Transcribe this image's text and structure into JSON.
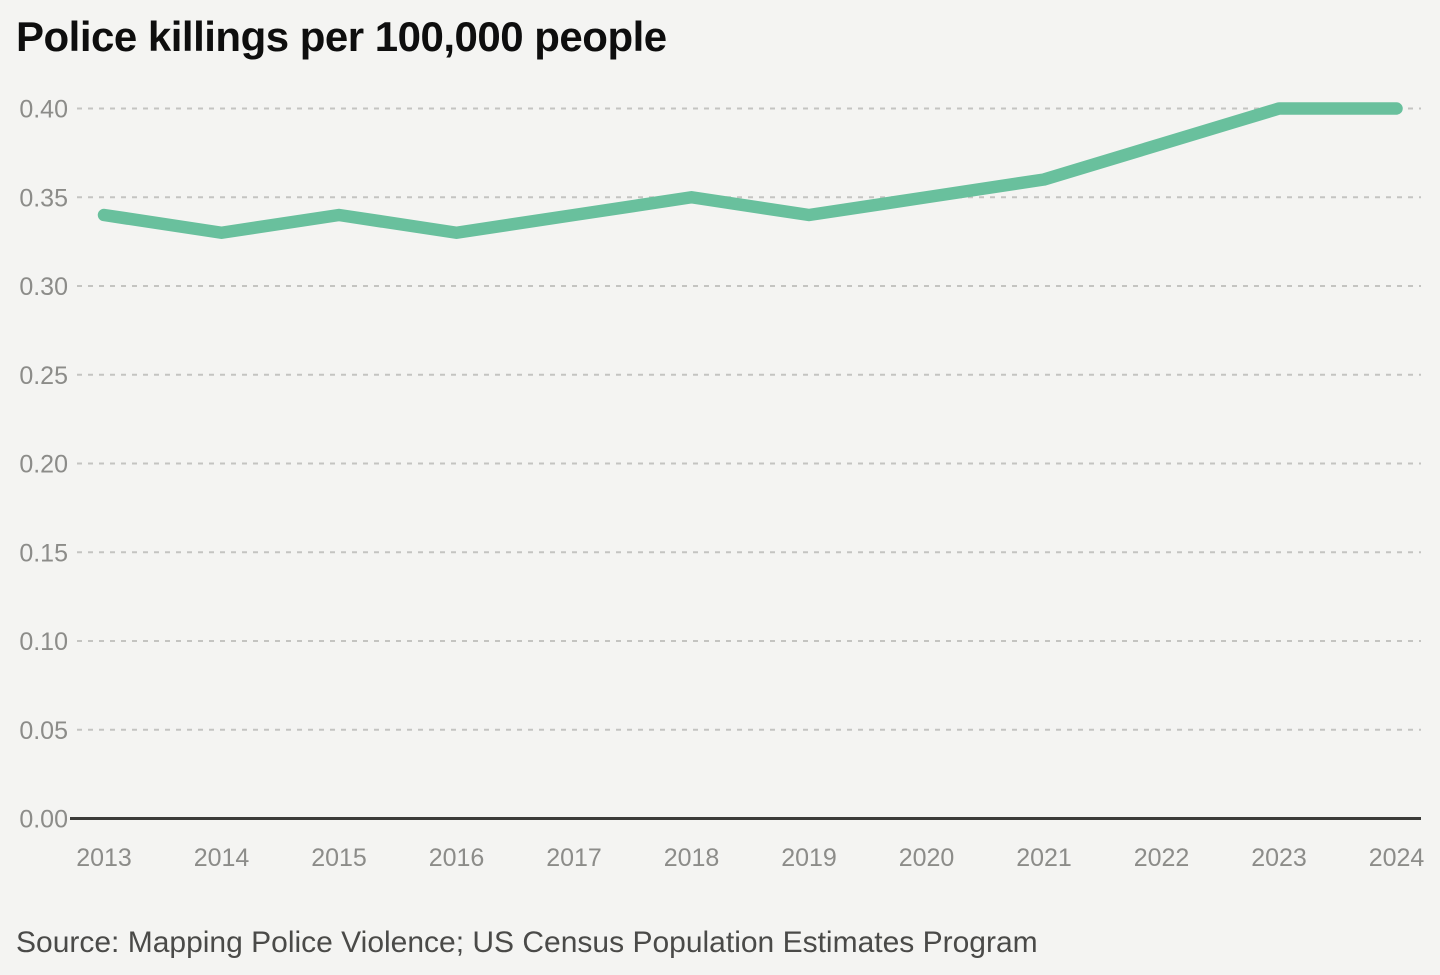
{
  "page": {
    "background_color": "#f4f4f2"
  },
  "header": {
    "title": "Police killings per 100,000 people"
  },
  "footer": {
    "source": "Source: Mapping Police Violence; US Census Population Estimates Program"
  },
  "chart_data": {
    "type": "line",
    "title": "Police killings per 100,000 people",
    "categories": [
      2013,
      2014,
      2015,
      2016,
      2017,
      2018,
      2019,
      2020,
      2021,
      2022,
      2023,
      2024
    ],
    "series": [
      {
        "name": "Police killings per 100,000 people",
        "values": [
          0.34,
          0.33,
          0.34,
          0.33,
          0.34,
          0.35,
          0.34,
          0.35,
          0.36,
          0.38,
          0.4,
          0.4
        ]
      }
    ],
    "xlabel": "",
    "ylabel": "",
    "ylim": [
      0.0,
      0.4
    ],
    "yticks": [
      0.0,
      0.05,
      0.1,
      0.15,
      0.2,
      0.25,
      0.3,
      0.35,
      0.4
    ],
    "ytick_labels": [
      "0.00",
      "0.05",
      "0.10",
      "0.15",
      "0.20",
      "0.25",
      "0.30",
      "0.35",
      "0.40"
    ],
    "grid": "horizontal-dashed",
    "legend": "none",
    "line_color": "#69c09d",
    "line_width": 12.5,
    "gridline_color": "#c4c4c1",
    "axis_line_color": "#3b3b39",
    "tick_label_color": "#8c8c89",
    "source": "Source: Mapping Police Violence; US Census Population Estimates Program"
  }
}
